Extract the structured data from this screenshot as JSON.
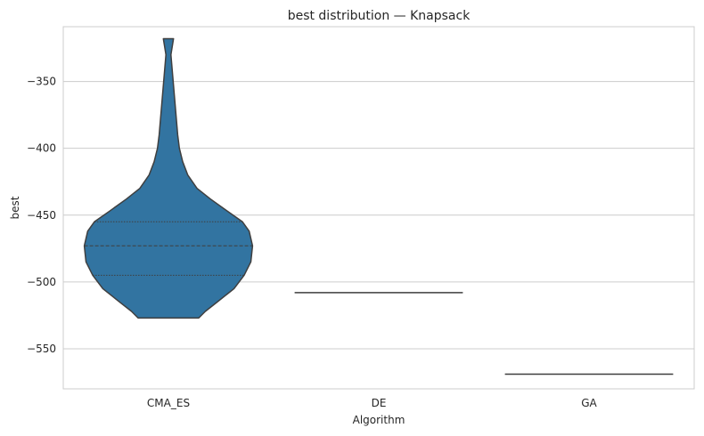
{
  "chart_data": {
    "type": "violin",
    "title": "best distribution — Knapsack",
    "xlabel": "Algorithm",
    "ylabel": "best",
    "categories": [
      "CMA_ES",
      "DE",
      "GA"
    ],
    "ylim": [
      -580,
      -309
    ],
    "yticks": [
      -350,
      -400,
      -450,
      -500,
      -550
    ],
    "grid": true,
    "colors": {
      "violin_fill": "#3274a1",
      "outline": "#3f3f3f",
      "grid": "#cccccc",
      "spine": "#cccccc"
    },
    "violins": [
      {
        "category": "CMA_ES",
        "min": -527,
        "max": -318,
        "quartiles": [
          -495,
          -473,
          -455
        ],
        "density": [
          [
            -527,
            0.36
          ],
          [
            -522,
            0.44
          ],
          [
            -515,
            0.58
          ],
          [
            -505,
            0.78
          ],
          [
            -495,
            0.9
          ],
          [
            -485,
            0.98
          ],
          [
            -473,
            1.0
          ],
          [
            -462,
            0.96
          ],
          [
            -455,
            0.88
          ],
          [
            -447,
            0.7
          ],
          [
            -438,
            0.5
          ],
          [
            -430,
            0.34
          ],
          [
            -420,
            0.23
          ],
          [
            -410,
            0.17
          ],
          [
            -400,
            0.13
          ],
          [
            -390,
            0.11
          ],
          [
            -375,
            0.09
          ],
          [
            -360,
            0.07
          ],
          [
            -345,
            0.05
          ],
          [
            -330,
            0.03
          ],
          [
            -318,
            0.06
          ]
        ]
      },
      {
        "category": "DE",
        "value": -508
      },
      {
        "category": "GA",
        "value": -569
      }
    ]
  }
}
